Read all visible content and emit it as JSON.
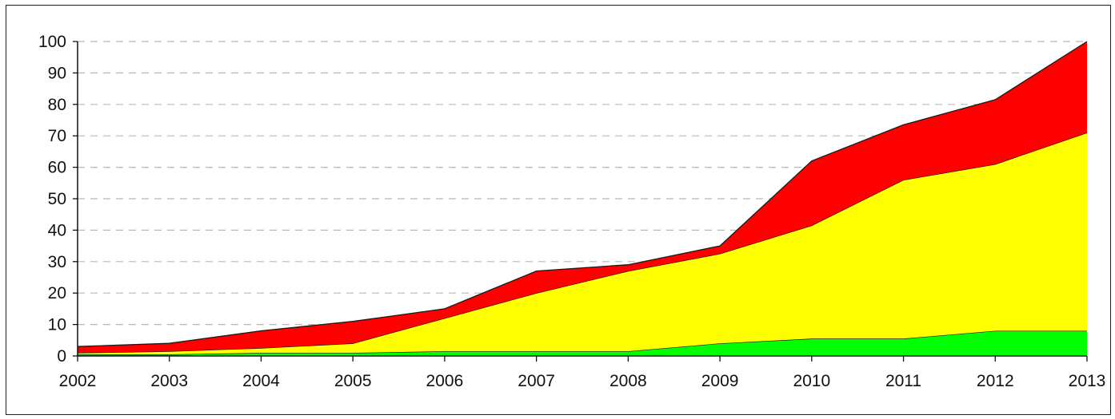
{
  "chart_data": {
    "type": "area",
    "stacked": true,
    "title": "",
    "xlabel": "",
    "ylabel": "",
    "x": [
      "2002",
      "2003",
      "2004",
      "2005",
      "2006",
      "2007",
      "2008",
      "2009",
      "2010",
      "2011",
      "2012",
      "2013"
    ],
    "ylim": [
      0,
      100
    ],
    "yticks": [
      0,
      10,
      20,
      30,
      40,
      50,
      60,
      70,
      80,
      90,
      100
    ],
    "grid": "horizontal dashed",
    "legend": "none",
    "series": [
      {
        "color": "#00ff00",
        "values": [
          0.5,
          0.5,
          1,
          1,
          1.5,
          1.5,
          1.5,
          4,
          5.5,
          5.5,
          8,
          8
        ]
      },
      {
        "color": "#ffff00",
        "values": [
          0.5,
          1,
          1.5,
          3,
          10.5,
          18.5,
          25.5,
          28.5,
          36,
          50.5,
          53,
          63
        ]
      },
      {
        "color": "#ff0000",
        "values": [
          2,
          2.5,
          5.5,
          7,
          3,
          7,
          2,
          2.5,
          20.5,
          17.5,
          20.5,
          29
        ]
      }
    ]
  }
}
